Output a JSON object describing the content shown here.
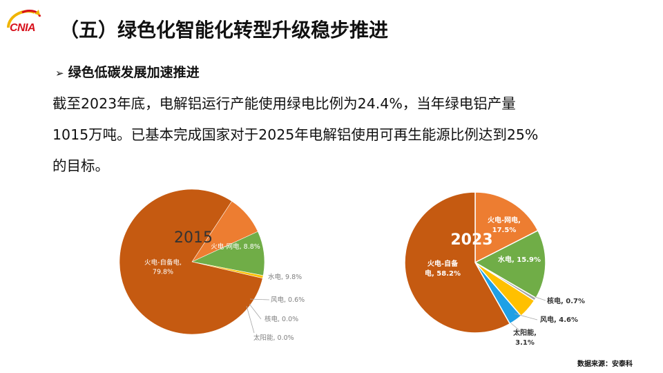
{
  "header": {
    "logo_text": "CNIA",
    "title": "（五）绿色化智能化转型升级稳步推进"
  },
  "section": {
    "subheading": "绿色低碳发展加速推进",
    "paragraph_lines": [
      "截至2023年底，电解铝运行产能使用绿电比例为24.4%，当年绿电铝产量",
      "1015万吨。已基本完成国家对于2025年电解铝使用可再生能源比例达到25%",
      "的目标。"
    ]
  },
  "colors": {
    "brand_red": "#d7101b",
    "thermal_self": "#c55a11",
    "thermal_grid": "#ed7d31",
    "hydro": "#70ad47",
    "wind": "#ffc000",
    "nuclear": "#a5a5a5",
    "solar": "#1fa0e6"
  },
  "chart_data": [
    {
      "type": "pie",
      "title": "2015",
      "slices": [
        {
          "label": "火电-网电",
          "value": 8.8,
          "text": "火电-网电, 8.8%",
          "color": "#ed7d31"
        },
        {
          "label": "水电",
          "value": 9.8,
          "text": "水电, 9.8%",
          "color": "#70ad47"
        },
        {
          "label": "风电",
          "value": 0.6,
          "text": "风电, 0.6%",
          "color": "#ffc000"
        },
        {
          "label": "核电",
          "value": 0.0,
          "text": "核电, 0.0%",
          "color": "#a5a5a5"
        },
        {
          "label": "太阳能",
          "value": 0.0,
          "text": "太阳能, 0.0%",
          "color": "#1fa0e6"
        },
        {
          "label": "火电-自备电",
          "value": 79.8,
          "text_lines": [
            "火电-自备电,",
            "79.8%"
          ],
          "color": "#c55a11"
        }
      ]
    },
    {
      "type": "pie",
      "title": "2023",
      "slices": [
        {
          "label": "火电-网电",
          "value": 17.5,
          "text_lines": [
            "火电-网电,",
            "17.5%"
          ],
          "color": "#ed7d31"
        },
        {
          "label": "水电",
          "value": 15.9,
          "text": "水电, 15.9%",
          "color": "#70ad47"
        },
        {
          "label": "核电",
          "value": 0.7,
          "text": "核电, 0.7%",
          "color": "#a5a5a5"
        },
        {
          "label": "风电",
          "value": 4.6,
          "text": "风电, 4.6%",
          "color": "#ffc000"
        },
        {
          "label": "太阳能",
          "value": 3.1,
          "text_lines": [
            "太阳能,",
            "3.1%"
          ],
          "color": "#1fa0e6"
        },
        {
          "label": "火电-自备电",
          "value": 58.2,
          "text_lines": [
            "火电-自备",
            "电, 58.2%"
          ],
          "color": "#c55a11"
        }
      ]
    }
  ],
  "footer": {
    "source": "数据来源：安泰科"
  }
}
